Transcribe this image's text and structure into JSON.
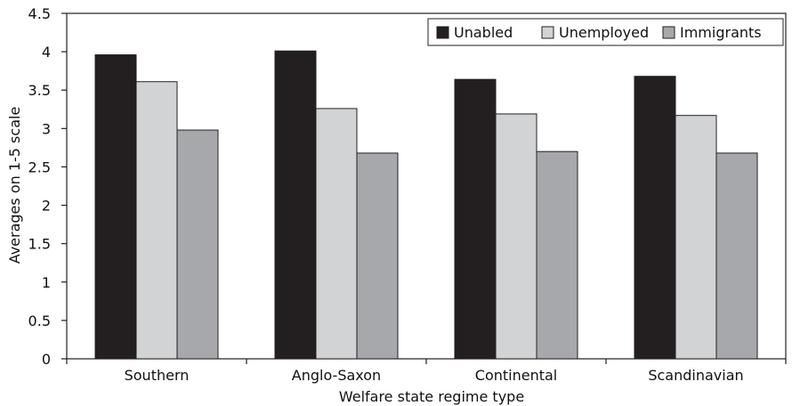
{
  "chart_data": {
    "type": "bar",
    "xlabel": "Welfare state regime type",
    "ylabel": "Averages on 1-5 scale",
    "ylim": [
      0,
      4.5
    ],
    "yticks": [
      "0",
      "0.5",
      "1",
      "1.5",
      "2",
      "2.5",
      "3",
      "3.5",
      "4",
      "4.5"
    ],
    "ytick_values": [
      0,
      0.5,
      1,
      1.5,
      2,
      2.5,
      3,
      3.5,
      4,
      4.5
    ],
    "categories": [
      "Southern",
      "Anglo-Saxon",
      "Continental",
      "Scandinavian"
    ],
    "series": [
      {
        "name": "Unabled",
        "color": "#231f20",
        "values": [
          3.96,
          4.01,
          3.64,
          3.68
        ]
      },
      {
        "name": "Unemployed",
        "color": "#d2d3d5",
        "values": [
          3.61,
          3.26,
          3.19,
          3.17
        ]
      },
      {
        "name": "Immigrants",
        "color": "#a6a8ab",
        "values": [
          2.98,
          2.68,
          2.7,
          2.68
        ]
      }
    ],
    "legend_position": "top-right",
    "grid": false
  }
}
